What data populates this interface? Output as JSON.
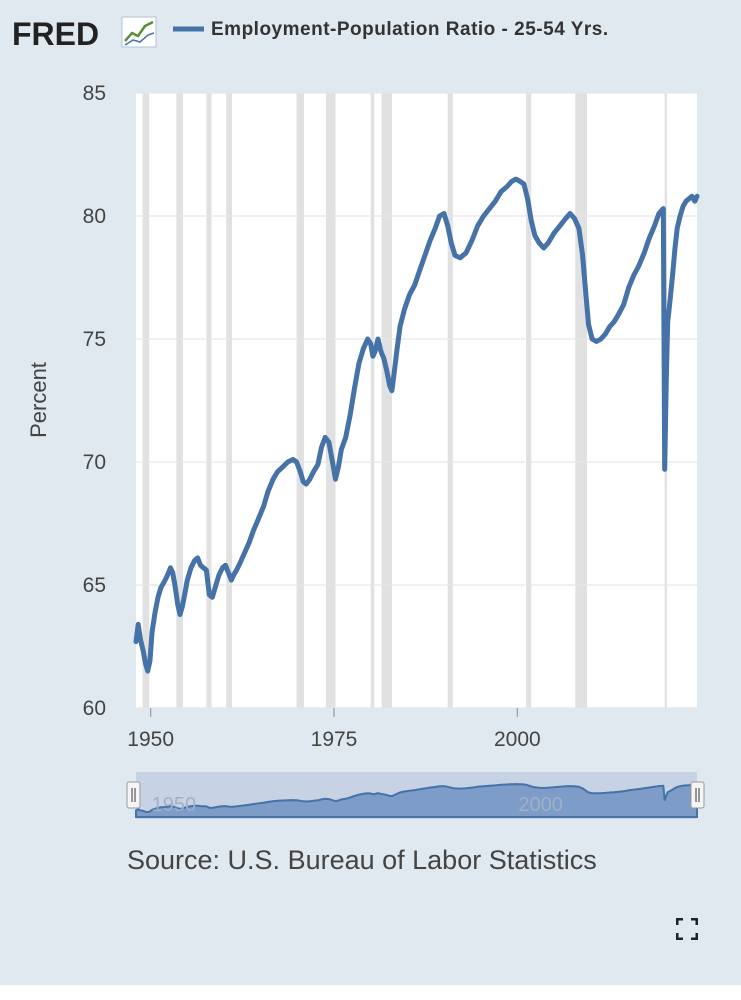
{
  "header": {
    "logo_text": "FRED",
    "legend_label": "Employment-Population Ratio - 25-54 Yrs.",
    "series_color": "#4572a7"
  },
  "source_text": "Source: U.S. Bureau of Labor Statistics",
  "navigator": {
    "x_ticks": [
      "1950",
      "2000"
    ]
  },
  "chart_data": {
    "type": "line",
    "title": "",
    "xlabel": "",
    "ylabel": "Percent",
    "xlim": [
      1948,
      2024.5
    ],
    "ylim": [
      60,
      85
    ],
    "y_ticks": [
      60,
      65,
      70,
      75,
      80,
      85
    ],
    "x_ticks": [
      1950,
      1975,
      2000
    ],
    "grid": "horizontal",
    "legend": "top",
    "recession_color": "#e1e1e1",
    "recessions": [
      [
        1948.9,
        1949.8
      ],
      [
        1953.5,
        1954.4
      ],
      [
        1957.6,
        1958.3
      ],
      [
        1960.3,
        1961.1
      ],
      [
        1969.9,
        1970.9
      ],
      [
        1973.9,
        1975.2
      ],
      [
        1980.0,
        1980.5
      ],
      [
        1981.5,
        1982.9
      ],
      [
        1990.5,
        1991.2
      ],
      [
        2001.2,
        2001.9
      ],
      [
        2007.9,
        2009.5
      ],
      [
        2020.1,
        2020.4
      ]
    ],
    "series": [
      {
        "name": "Employment-Population Ratio - 25-54 Yrs.",
        "x": [
          1948.0,
          1948.3,
          1948.6,
          1949.0,
          1949.3,
          1949.6,
          1949.9,
          1950.2,
          1950.6,
          1951.0,
          1951.4,
          1951.8,
          1952.3,
          1952.7,
          1953.0,
          1953.3,
          1953.7,
          1954.0,
          1954.3,
          1954.7,
          1955.0,
          1955.5,
          1956.0,
          1956.4,
          1956.8,
          1957.2,
          1957.6,
          1958.0,
          1958.4,
          1958.8,
          1959.3,
          1959.8,
          1960.2,
          1960.6,
          1961.0,
          1961.3,
          1961.7,
          1962.2,
          1962.8,
          1963.4,
          1964.0,
          1964.7,
          1965.4,
          1966.0,
          1966.7,
          1967.3,
          1968.0,
          1968.7,
          1969.4,
          1969.9,
          1970.4,
          1970.8,
          1971.2,
          1971.7,
          1972.2,
          1972.8,
          1973.3,
          1973.8,
          1974.3,
          1974.8,
          1975.2,
          1975.6,
          1976.0,
          1976.6,
          1977.2,
          1977.8,
          1978.4,
          1979.0,
          1979.6,
          1980.0,
          1980.3,
          1980.6,
          1981.0,
          1981.4,
          1981.8,
          1982.2,
          1982.6,
          1982.9,
          1983.2,
          1983.6,
          1984.0,
          1984.6,
          1985.3,
          1986.0,
          1986.7,
          1987.4,
          1988.1,
          1988.8,
          1989.4,
          1990.0,
          1990.5,
          1991.0,
          1991.5,
          1992.2,
          1993.0,
          1993.8,
          1994.6,
          1995.4,
          1996.2,
          1997.0,
          1997.8,
          1998.6,
          1999.2,
          1999.8,
          2000.4,
          2000.9,
          2001.4,
          2001.9,
          2002.4,
          2003.0,
          2003.6,
          2004.2,
          2005.0,
          2005.8,
          2006.6,
          2007.2,
          2007.8,
          2008.4,
          2008.9,
          2009.3,
          2009.7,
          2010.2,
          2010.8,
          2011.4,
          2012.0,
          2012.6,
          2013.2,
          2013.8,
          2014.5,
          2015.2,
          2015.9,
          2016.6,
          2017.3,
          2018.0,
          2018.7,
          2019.3,
          2019.9,
          2020.1,
          2020.3,
          2020.5,
          2020.7,
          2020.9,
          2021.2,
          2021.5,
          2021.8,
          2022.2,
          2022.6,
          2023.0,
          2023.4,
          2023.8,
          2024.2,
          2024.5
        ],
        "y": [
          62.7,
          63.4,
          62.8,
          62.3,
          61.8,
          61.5,
          61.9,
          63.1,
          63.9,
          64.5,
          64.9,
          65.1,
          65.4,
          65.7,
          65.5,
          65.0,
          64.2,
          63.8,
          64.1,
          64.7,
          65.2,
          65.7,
          66.0,
          66.1,
          65.8,
          65.7,
          65.6,
          64.6,
          64.5,
          64.9,
          65.4,
          65.7,
          65.8,
          65.5,
          65.2,
          65.4,
          65.6,
          65.9,
          66.3,
          66.7,
          67.2,
          67.7,
          68.2,
          68.8,
          69.3,
          69.6,
          69.8,
          70.0,
          70.1,
          70.0,
          69.6,
          69.2,
          69.1,
          69.3,
          69.6,
          69.9,
          70.6,
          71.0,
          70.8,
          70.0,
          69.3,
          69.8,
          70.5,
          71.0,
          71.9,
          73.0,
          74.0,
          74.6,
          75.0,
          74.8,
          74.3,
          74.5,
          75.0,
          74.5,
          74.2,
          73.7,
          73.1,
          72.9,
          73.6,
          74.6,
          75.5,
          76.2,
          76.8,
          77.2,
          77.8,
          78.4,
          79.0,
          79.5,
          80.0,
          80.1,
          79.6,
          78.9,
          78.4,
          78.3,
          78.5,
          79.0,
          79.6,
          80.0,
          80.3,
          80.6,
          81.0,
          81.2,
          81.4,
          81.5,
          81.4,
          81.3,
          80.7,
          79.8,
          79.2,
          78.9,
          78.7,
          78.9,
          79.3,
          79.6,
          79.9,
          80.1,
          79.9,
          79.5,
          78.4,
          77.0,
          75.6,
          75.0,
          74.9,
          75.0,
          75.2,
          75.5,
          75.7,
          76.0,
          76.4,
          77.1,
          77.6,
          78.0,
          78.5,
          79.1,
          79.6,
          80.1,
          80.3,
          69.7,
          73.2,
          75.7,
          76.2,
          76.8,
          77.7,
          78.7,
          79.5,
          80.0,
          80.4,
          80.6,
          80.7,
          80.8,
          80.6,
          80.8
        ]
      }
    ]
  }
}
